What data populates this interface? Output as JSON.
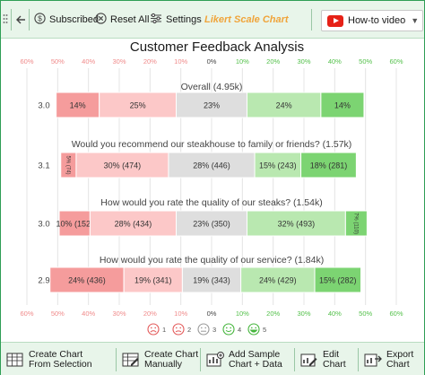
{
  "toolbar": {
    "subscribed_label": "Subscribed",
    "reset_label": "Reset All",
    "settings_label": "Settings",
    "brand_label": "Likert Scale Chart",
    "howto_label": "How-to video"
  },
  "bottom_bar": {
    "create_from_selection": [
      "Create Chart",
      "From Selection"
    ],
    "create_manually": [
      "Create Chart",
      "Manually"
    ],
    "add_sample": [
      "Add Sample",
      "Chart + Data"
    ],
    "edit_chart": [
      "Edit",
      "Chart"
    ],
    "export_chart": [
      "Export",
      "Chart"
    ]
  },
  "colors": {
    "strongly_negative": "#f59c9c",
    "negative": "#fcc8c8",
    "neutral": "#dedede",
    "positive": "#b9e8b0",
    "strongly_positive": "#7cd472",
    "axis_negative_text": "#f08a8a",
    "axis_positive_text": "#53c04a",
    "toolbar_bg": "#e8f5ea",
    "brand": "#f0a43a"
  },
  "chart_data": {
    "type": "bar",
    "subtype": "diverging stacked (likert)",
    "title": "Customer Feedback Analysis",
    "x_ticks": [
      "60%",
      "50%",
      "40%",
      "30%",
      "20%",
      "10%",
      "0%",
      "10%",
      "20%",
      "30%",
      "40%",
      "50%",
      "60%"
    ],
    "xlim": [
      -60,
      60
    ],
    "grid": true,
    "legend": {
      "position": "bottom",
      "entries": [
        {
          "label": "1",
          "icon": "very-sad-face-icon"
        },
        {
          "label": "2",
          "icon": "sad-face-icon"
        },
        {
          "label": "3",
          "icon": "neutral-face-icon"
        },
        {
          "label": "4",
          "icon": "smile-face-icon"
        },
        {
          "label": "5",
          "icon": "big-smile-face-icon"
        }
      ]
    },
    "questions": [
      {
        "label": "Overall (4.95k)",
        "score": "3.0",
        "values": [
          14,
          25,
          23,
          24,
          14
        ],
        "labels": [
          "14%",
          "25%",
          "23%",
          "24%",
          "14%"
        ]
      },
      {
        "label": "Would you recommend our steakhouse to family or friends? (1.57k)",
        "score": "3.1",
        "values": [
          5,
          30,
          28,
          15,
          18
        ],
        "labels": [
          "5% (74)",
          "30% (474)",
          "28% (446)",
          "15% (243)",
          "18% (281)"
        ]
      },
      {
        "label": "How would you rate the quality of our steaks? (1.54k)",
        "score": "3.0",
        "values": [
          10,
          28,
          23,
          32,
          7
        ],
        "labels": [
          "10% (152)",
          "28% (434)",
          "23% (350)",
          "32% (493)",
          "7% (110)"
        ]
      },
      {
        "label": "How would you rate the quality of our service? (1.84k)",
        "score": "2.9",
        "values": [
          24,
          19,
          19,
          24,
          15
        ],
        "labels": [
          "24% (436)",
          "19% (341)",
          "19% (343)",
          "24% (429)",
          "15% (282)"
        ]
      }
    ]
  }
}
